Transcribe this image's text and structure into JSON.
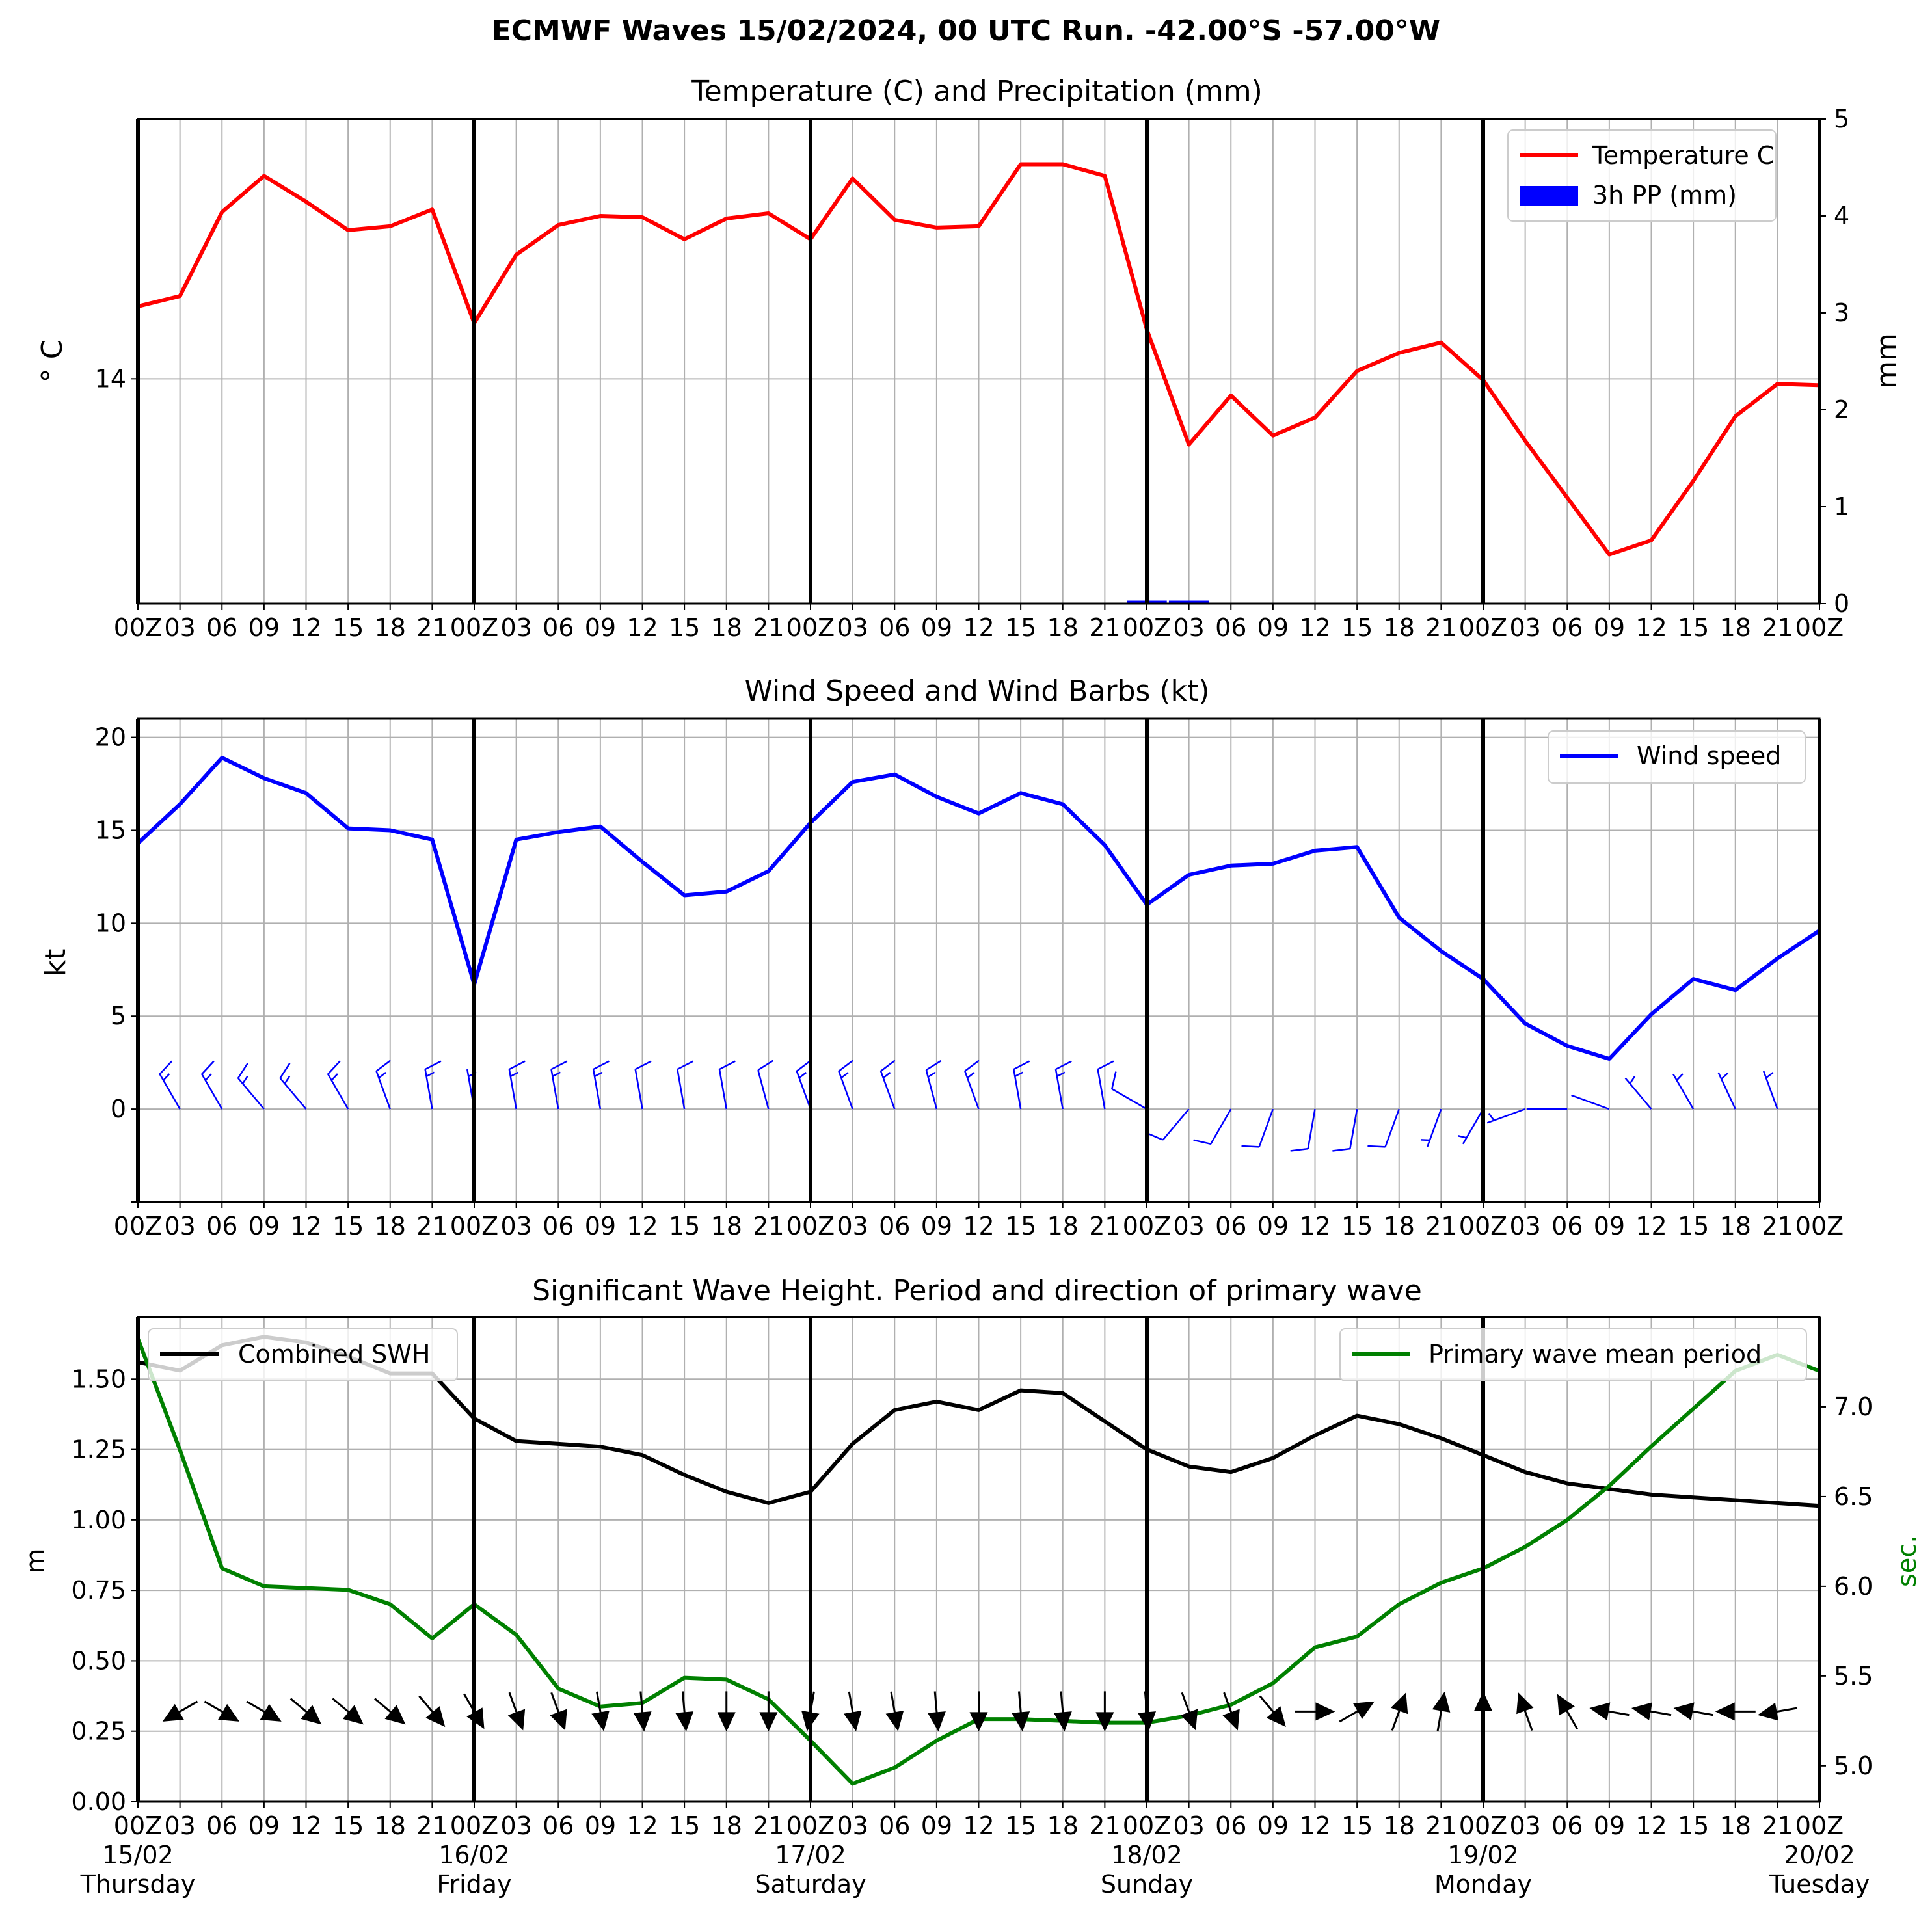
{
  "figure": {
    "title": "ECMWF Waves 15/02/2024, 00 UTC Run. -42.00°S -57.00°W"
  },
  "hour_ticks": [
    "00Z",
    "03",
    "06",
    "09",
    "12",
    "15",
    "18",
    "21",
    "00Z",
    "03",
    "06",
    "09",
    "12",
    "15",
    "18",
    "21",
    "00Z",
    "03",
    "06",
    "09",
    "12",
    "15",
    "18",
    "21",
    "00Z",
    "03",
    "06",
    "09",
    "12",
    "15",
    "18",
    "21",
    "00Z",
    "03",
    "06",
    "09",
    "12",
    "15",
    "18",
    "21",
    "00Z"
  ],
  "day_labels": [
    {
      "date": "15/02",
      "day": "Thursday"
    },
    {
      "date": "16/02",
      "day": "Friday"
    },
    {
      "date": "17/02",
      "day": "Saturday"
    },
    {
      "date": "18/02",
      "day": "Sunday"
    },
    {
      "date": "19/02",
      "day": "Monday"
    },
    {
      "date": "20/02",
      "day": "Tuesday"
    }
  ],
  "colors": {
    "temperature": "#ff0000",
    "precip": "#0000ff",
    "wind": "#0000ff",
    "swh": "#000000",
    "period": "#008000",
    "grid": "#b0b0b0"
  },
  "chart_data": [
    {
      "type": "line",
      "title": "Temperature (C) and Precipitation (mm)",
      "ylabel": "° C",
      "y2label": "mm",
      "yticks": [
        14
      ],
      "y2ticks": [
        "0",
        "1",
        "2",
        "3",
        "4",
        "5"
      ],
      "ylim": [
        12.26,
        16.01
      ],
      "y2lim": [
        0,
        5
      ],
      "x_step_hours": 3,
      "grid": true,
      "legend": "top-right",
      "series": [
        {
          "name": "Temperature C",
          "type": "line",
          "color": "#ff0000",
          "values": [
            14.56,
            14.64,
            15.29,
            15.57,
            15.37,
            15.15,
            15.18,
            15.31,
            14.43,
            14.96,
            15.19,
            15.26,
            15.25,
            15.08,
            15.24,
            15.28,
            15.08,
            15.55,
            15.23,
            15.17,
            15.18,
            15.66,
            15.66,
            15.57,
            14.38,
            13.49,
            13.87,
            13.56,
            13.7,
            14.06,
            14.2,
            14.28,
            13.99,
            13.52,
            13.08,
            12.64,
            12.75,
            13.21,
            13.71,
            13.96,
            13.95
          ]
        },
        {
          "name": "3h PP (mm)",
          "type": "bar",
          "color": "#0000ff",
          "values": [
            0,
            0,
            0,
            0,
            0,
            0,
            0,
            0,
            0,
            0,
            0,
            0,
            0,
            0,
            0,
            0,
            0,
            0,
            0,
            0,
            0,
            0,
            0,
            0,
            0.03,
            0.03,
            0,
            0,
            0,
            0,
            0,
            0,
            0,
            0,
            0,
            0,
            0,
            0,
            0,
            0,
            0
          ]
        }
      ]
    },
    {
      "type": "line",
      "title": "Wind Speed and Wind Barbs (kt)",
      "ylabel": "kt",
      "yticks": [
        "0",
        "5",
        "10",
        "15",
        "20"
      ],
      "ylim": [
        -5,
        21
      ],
      "x_step_hours": 3,
      "grid": true,
      "legend": "top-right",
      "series": [
        {
          "name": "Wind speed",
          "color": "#0000ff",
          "values": [
            14.3,
            16.4,
            18.9,
            17.8,
            17.0,
            15.1,
            15.0,
            14.5,
            6.7,
            14.5,
            14.9,
            15.2,
            13.3,
            11.5,
            11.7,
            12.8,
            15.4,
            17.6,
            18.0,
            16.8,
            15.9,
            17.0,
            16.4,
            14.2,
            11.0,
            12.6,
            13.1,
            13.2,
            13.9,
            14.1,
            10.3,
            8.5,
            7.0,
            4.6,
            3.4,
            2.7,
            5.1,
            7.0,
            6.4,
            8.1,
            9.6
          ]
        }
      ],
      "wind_barbs": {
        "direction_deg": [
          340,
          330,
          330,
          320,
          320,
          330,
          340,
          350,
          350,
          350,
          350,
          350,
          350,
          350,
          350,
          345,
          340,
          340,
          340,
          345,
          340,
          350,
          350,
          350,
          300,
          220,
          210,
          200,
          190,
          190,
          200,
          200,
          210,
          250,
          270,
          290,
          320,
          330,
          335,
          340,
          340
        ],
        "speed_kt": [
          14,
          16,
          19,
          18,
          17,
          15,
          15,
          15,
          7,
          15,
          15,
          15,
          13,
          12,
          12,
          13,
          15,
          18,
          18,
          17,
          16,
          17,
          16,
          14,
          11,
          13,
          13,
          13,
          14,
          14,
          10,
          8,
          7,
          5,
          3,
          3,
          5,
          7,
          6,
          8,
          10
        ]
      }
    },
    {
      "type": "line",
      "title": "Significant Wave Height. Period and direction of primary wave",
      "ylabel": "m",
      "y2label": "sec.",
      "yticks": [
        "0.00",
        "0.25",
        "0.50",
        "0.75",
        "1.00",
        "1.25",
        "1.50"
      ],
      "y2ticks": [
        "5.0",
        "5.5",
        "6.0",
        "6.5",
        "7.0"
      ],
      "ylim": [
        0,
        1.72
      ],
      "y2lim": [
        4.8,
        7.5
      ],
      "x_step_hours": 3,
      "grid": true,
      "series": [
        {
          "name": "Combined SWH",
          "color": "#000000",
          "legend": "top-left",
          "values": [
            1.56,
            1.53,
            1.62,
            1.65,
            1.63,
            1.58,
            1.52,
            1.52,
            1.36,
            1.28,
            1.27,
            1.26,
            1.23,
            1.16,
            1.1,
            1.06,
            1.1,
            1.27,
            1.39,
            1.42,
            1.39,
            1.46,
            1.45,
            1.35,
            1.25,
            1.19,
            1.17,
            1.22,
            1.3,
            1.37,
            1.34,
            1.29,
            1.23,
            1.17,
            1.13,
            1.11,
            1.09,
            1.08,
            1.07,
            1.06,
            1.05
          ]
        },
        {
          "name": "Primary wave mean period",
          "color": "#008000",
          "axis": "right",
          "legend": "top-right",
          "values": [
            7.38,
            6.76,
            6.1,
            6.0,
            5.99,
            5.98,
            5.9,
            5.71,
            5.9,
            5.73,
            5.43,
            5.33,
            5.35,
            5.49,
            5.48,
            5.37,
            5.14,
            4.9,
            4.99,
            5.14,
            5.26,
            5.26,
            5.25,
            5.24,
            5.24,
            5.28,
            5.34,
            5.46,
            5.66,
            5.72,
            5.9,
            6.02,
            6.1,
            6.22,
            6.37,
            6.56,
            6.78,
            6.99,
            7.2,
            7.29,
            7.2
          ]
        }
      ],
      "wave_direction_deg": [
        30,
        60,
        300,
        300,
        310,
        310,
        310,
        320,
        330,
        340,
        340,
        350,
        355,
        355,
        0,
        0,
        10,
        350,
        350,
        355,
        0,
        355,
        355,
        0,
        355,
        340,
        340,
        320,
        270,
        240,
        200,
        190,
        180,
        160,
        150,
        100,
        100,
        100,
        90,
        80,
        70
      ]
    }
  ]
}
